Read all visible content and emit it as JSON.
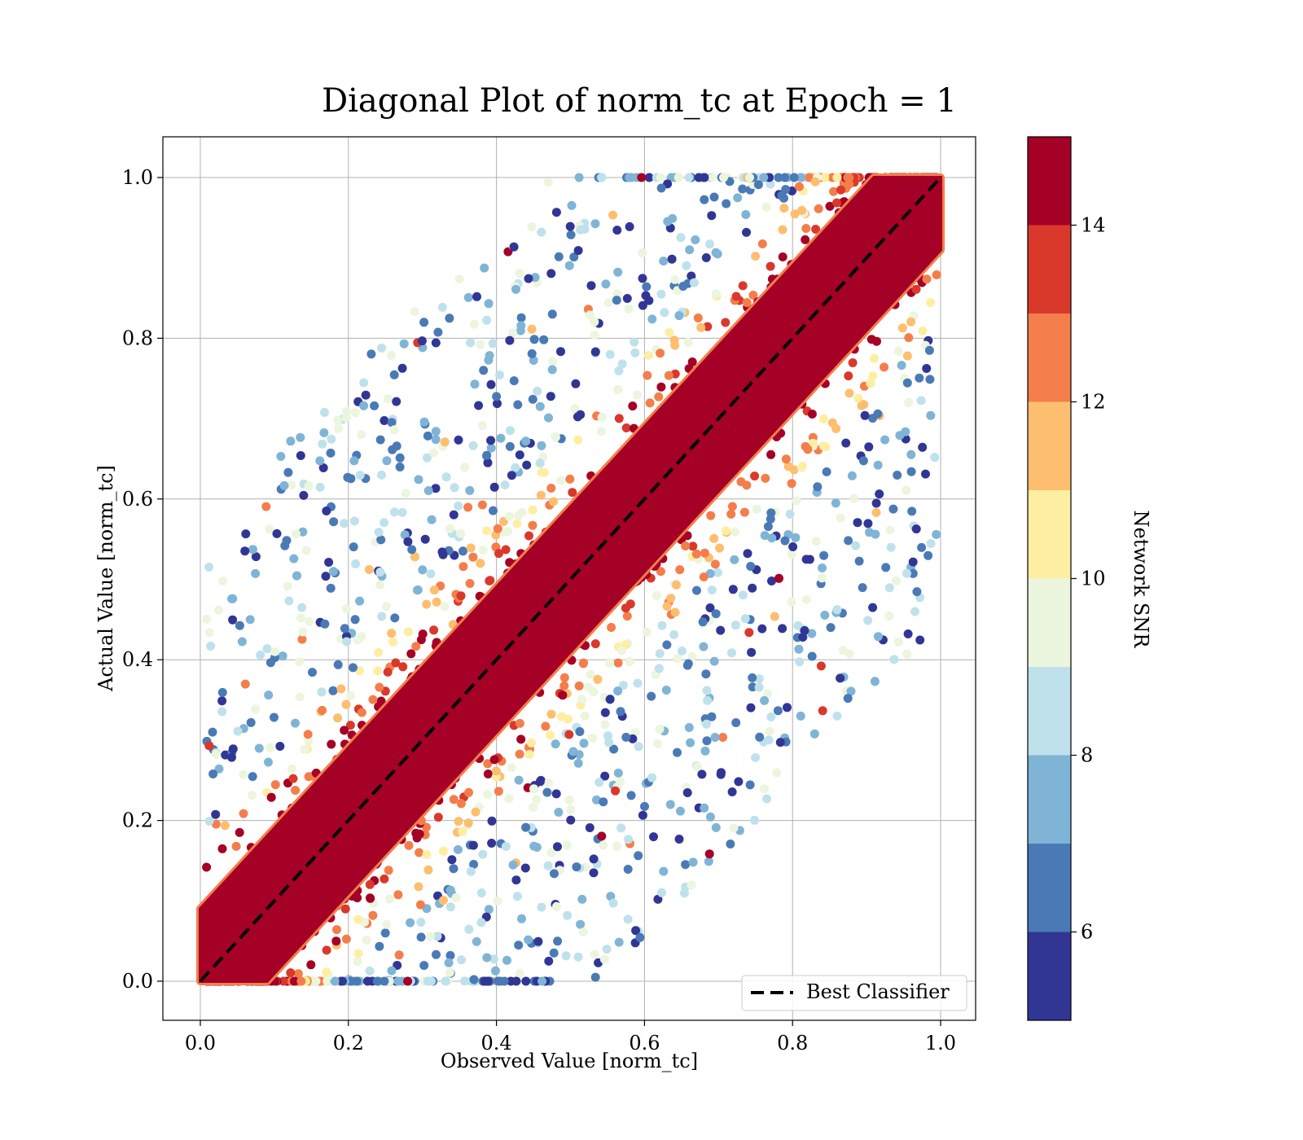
{
  "chart_data": {
    "type": "scatter",
    "title": "Diagonal Plot of norm_tc at Epoch = 1",
    "xlabel": "Observed Value [norm_tc]",
    "ylabel": "Actual Value [norm_tc]",
    "xlim": [
      -0.05,
      1.05
    ],
    "ylim": [
      -0.05,
      1.05
    ],
    "xticks": [
      0.0,
      0.2,
      0.4,
      0.6,
      0.8,
      1.0
    ],
    "yticks": [
      0.0,
      0.2,
      0.4,
      0.6,
      0.8,
      1.0
    ],
    "xtick_labels": [
      "0.0",
      "0.2",
      "0.4",
      "0.6",
      "0.8",
      "1.0"
    ],
    "ytick_labels": [
      "0.0",
      "0.2",
      "0.4",
      "0.6",
      "0.8",
      "1.0"
    ],
    "grid": true,
    "colorbar": {
      "label": "Network SNR",
      "range": [
        5,
        15
      ],
      "ticks": [
        6,
        8,
        10,
        12,
        14
      ],
      "tick_labels": [
        "6",
        "8",
        "10",
        "12",
        "14"
      ],
      "bins": [
        {
          "from": 5,
          "to": 6,
          "color": "#313695"
        },
        {
          "from": 6,
          "to": 7,
          "color": "#4a7ab6"
        },
        {
          "from": 7,
          "to": 8,
          "color": "#7fb4d6"
        },
        {
          "from": 8,
          "to": 9,
          "color": "#bfe1ec"
        },
        {
          "from": 9,
          "to": 10,
          "color": "#ecf5de"
        },
        {
          "from": 10,
          "to": 11,
          "color": "#feeea2"
        },
        {
          "from": 11,
          "to": 12,
          "color": "#fdbe6f"
        },
        {
          "from": 12,
          "to": 13,
          "color": "#f47e4b"
        },
        {
          "from": 13,
          "to": 14,
          "color": "#d9392b"
        },
        {
          "from": 14,
          "to": 15,
          "color": "#a50026"
        }
      ]
    },
    "point_cloud": {
      "description_of_distribution": "dense points along the diagonal with high SNR, scattered low-SNR points far from the diagonal",
      "x_range": [
        0.0,
        1.0
      ],
      "y_range": [
        0.0,
        1.0
      ],
      "high_snr_band_halfwidth": 0.09,
      "high_snr_value": 15,
      "low_snr_values": [
        5,
        6,
        7,
        8,
        9,
        10,
        11,
        12,
        13
      ]
    },
    "reference_line": {
      "name": "Best Classifier",
      "x": [
        0,
        1
      ],
      "y": [
        0,
        1
      ],
      "style": "dashed",
      "color": "#000000"
    },
    "legend": {
      "placement": "lower right",
      "entries": [
        "Best Classifier"
      ]
    }
  }
}
